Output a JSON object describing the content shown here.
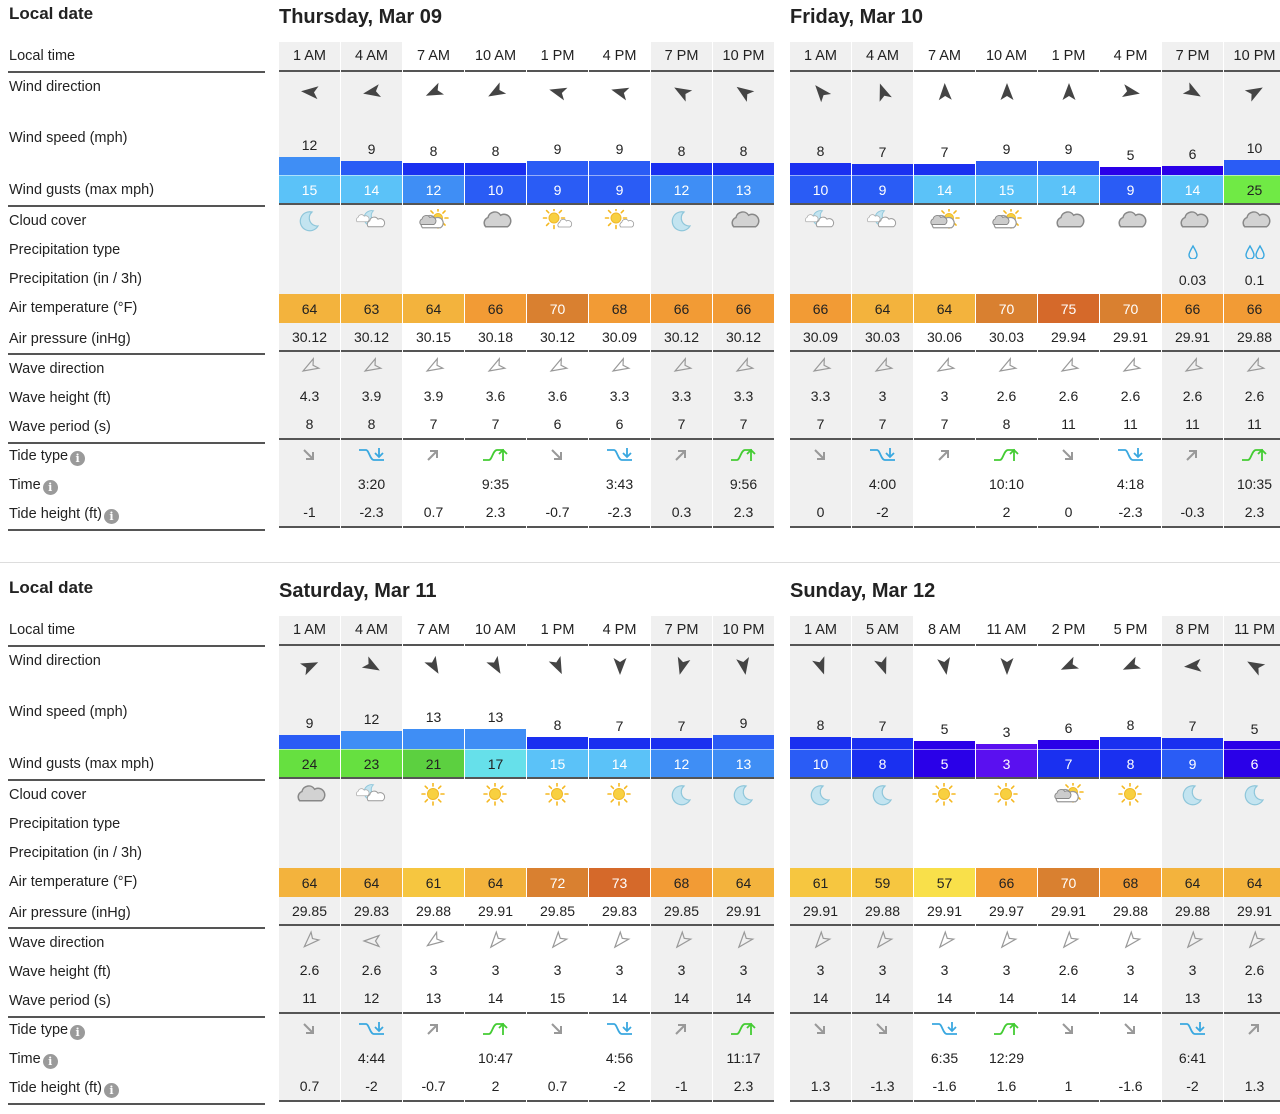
{
  "labels": {
    "local_date": "Local date",
    "local_time": "Local time",
    "wind_direction": "Wind direction",
    "wind_speed": "Wind speed (mph)",
    "wind_gusts": "Wind gusts (max mph)",
    "cloud_cover": "Cloud cover",
    "precip_type": "Precipitation type",
    "precip": "Precipitation (in / 3h)",
    "air_temp": "Air temperature (°F)",
    "air_pressure": "Air pressure (inHg)",
    "wave_direction": "Wave direction",
    "wave_height": "Wave height (ft)",
    "wave_period": "Wave period (s)",
    "tide_type": "Tide type",
    "tide_time": "Time",
    "tide_height": "Tide height (ft)"
  },
  "colors": {
    "wind_scale": [
      [
        0,
        "#5a10f0"
      ],
      [
        4,
        "#2a00e8"
      ],
      [
        7,
        "#1a30f0"
      ],
      [
        9,
        "#2a5cf5"
      ],
      [
        11,
        "#3f8ef5"
      ],
      [
        14,
        "#5bc2f8"
      ],
      [
        16,
        "#66e0ea"
      ],
      [
        19,
        "#5cd040"
      ],
      [
        22,
        "#66e040"
      ],
      [
        25,
        "#70ea45"
      ]
    ],
    "temp_scale": [
      [
        0,
        "#f9e04a"
      ],
      [
        58,
        "#f6c640"
      ],
      [
        62,
        "#f3b33d"
      ],
      [
        65,
        "#f29b35"
      ],
      [
        69,
        "#d98030"
      ],
      [
        73,
        "#d5692a"
      ]
    ],
    "tide_low": "#3aa8e0",
    "tide_high": "#44cc33",
    "night_bg": "#f0f0f0"
  },
  "sections": [
    {
      "days": [
        {
          "title": "Thursday, Mar 09",
          "times": [
            "1 AM",
            "4 AM",
            "7 AM",
            "10 AM",
            "1 PM",
            "4 PM",
            "7 PM",
            "10 PM"
          ],
          "night": [
            true,
            true,
            false,
            false,
            false,
            false,
            true,
            true
          ],
          "wind_dir_deg": [
            275,
            260,
            245,
            240,
            285,
            285,
            300,
            305
          ],
          "wind_speed": [
            12,
            9,
            8,
            8,
            9,
            9,
            8,
            8
          ],
          "wind_gusts": [
            15,
            14,
            12,
            10,
            9,
            9,
            12,
            13
          ],
          "cloud": [
            "moon",
            "moon-cloud",
            "sun-cloud",
            "cloud",
            "sun-small-cloud",
            "sun-small-cloud",
            "moon",
            "cloud"
          ],
          "precip_type": [
            "",
            "",
            "",
            "",
            "",
            "",
            "",
            ""
          ],
          "precip": [
            "",
            "",
            "",
            "",
            "",
            "",
            "",
            ""
          ],
          "temp": [
            64,
            63,
            64,
            66,
            70,
            68,
            66,
            66
          ],
          "pressure": [
            "30.12",
            "30.12",
            "30.15",
            "30.18",
            "30.12",
            "30.09",
            "30.12",
            "30.12"
          ],
          "wave_dir_deg": [
            240,
            240,
            240,
            240,
            240,
            240,
            240,
            240
          ],
          "wave_height": [
            "4.3",
            "3.9",
            "3.9",
            "3.6",
            "3.6",
            "3.3",
            "3.3",
            "3.3"
          ],
          "wave_period": [
            "8",
            "8",
            "7",
            "7",
            "6",
            "6",
            "7",
            "7"
          ],
          "tide_type": [
            "falling",
            "low",
            "rising",
            "high",
            "falling",
            "low",
            "rising",
            "high"
          ],
          "tide_time": [
            "",
            "3:20",
            "",
            "9:35",
            "",
            "3:43",
            "",
            "9:56"
          ],
          "tide_height": [
            "-1",
            "-2.3",
            "0.7",
            "2.3",
            "-0.7",
            "-2.3",
            "0.3",
            "2.3"
          ]
        },
        {
          "title": "Friday, Mar 10",
          "times": [
            "1 AM",
            "4 AM",
            "7 AM",
            "10 AM",
            "1 PM",
            "4 PM",
            "7 PM",
            "10 PM"
          ],
          "night": [
            true,
            true,
            false,
            false,
            false,
            false,
            true,
            true
          ],
          "wind_dir_deg": [
            320,
            340,
            358,
            0,
            0,
            100,
            120,
            60
          ],
          "wind_speed": [
            8,
            7,
            7,
            9,
            9,
            5,
            6,
            10
          ],
          "wind_gusts": [
            10,
            9,
            14,
            15,
            14,
            9,
            14,
            25
          ],
          "cloud": [
            "moon-cloud",
            "moon-cloud",
            "sun-cloud",
            "sun-cloud",
            "cloud",
            "cloud",
            "cloud",
            "cloud"
          ],
          "precip_type": [
            "",
            "",
            "",
            "",
            "",
            "",
            "rain-light",
            "rain"
          ],
          "precip": [
            "",
            "",
            "",
            "",
            "",
            "",
            "0.03",
            "0.1"
          ],
          "temp": [
            66,
            64,
            64,
            70,
            75,
            70,
            66,
            66
          ],
          "pressure": [
            "30.09",
            "30.03",
            "30.06",
            "30.03",
            "29.94",
            "29.91",
            "29.91",
            "29.88"
          ],
          "wave_dir_deg": [
            240,
            240,
            240,
            240,
            240,
            240,
            240,
            240
          ],
          "wave_height": [
            "3.3",
            "3",
            "3",
            "2.6",
            "2.6",
            "2.6",
            "2.6",
            "2.6"
          ],
          "wave_period": [
            "7",
            "7",
            "7",
            "8",
            "11",
            "11",
            "11",
            "11"
          ],
          "tide_type": [
            "falling",
            "low",
            "rising",
            "high",
            "falling",
            "low",
            "rising",
            "high"
          ],
          "tide_time": [
            "",
            "4:00",
            "",
            "10:10",
            "",
            "4:18",
            "",
            "10:35"
          ],
          "tide_height": [
            "0",
            "-2",
            "",
            "2",
            "0",
            "-2.3",
            "-0.3",
            "2.3"
          ]
        }
      ]
    },
    {
      "days": [
        {
          "title": "Saturday, Mar 11",
          "times": [
            "1 AM",
            "4 AM",
            "7 AM",
            "10 AM",
            "1 PM",
            "4 PM",
            "7 PM",
            "10 PM"
          ],
          "night": [
            true,
            true,
            false,
            false,
            false,
            false,
            true,
            true
          ],
          "wind_dir_deg": [
            65,
            120,
            150,
            150,
            155,
            180,
            195,
            170
          ],
          "wind_speed": [
            9,
            12,
            13,
            13,
            8,
            7,
            7,
            9
          ],
          "wind_gusts": [
            24,
            23,
            21,
            17,
            15,
            14,
            12,
            13
          ],
          "cloud": [
            "cloud",
            "moon-cloud",
            "sun",
            "sun",
            "sun",
            "sun",
            "moon",
            "moon"
          ],
          "precip_type": [
            "",
            "",
            "",
            "",
            "",
            "",
            "",
            ""
          ],
          "precip": [
            "",
            "",
            "",
            "",
            "",
            "",
            "",
            ""
          ],
          "temp": [
            64,
            64,
            61,
            64,
            72,
            73,
            68,
            64
          ],
          "pressure": [
            "29.85",
            "29.83",
            "29.88",
            "29.91",
            "29.85",
            "29.83",
            "29.85",
            "29.91"
          ],
          "wave_dir_deg": [
            225,
            270,
            235,
            220,
            220,
            220,
            220,
            220
          ],
          "wave_height": [
            "2.6",
            "2.6",
            "3",
            "3",
            "3",
            "3",
            "3",
            "3"
          ],
          "wave_period": [
            "11",
            "12",
            "13",
            "14",
            "15",
            "14",
            "14",
            "14"
          ],
          "tide_type": [
            "falling",
            "low",
            "rising",
            "high",
            "falling",
            "low",
            "rising",
            "high"
          ],
          "tide_time": [
            "",
            "4:44",
            "",
            "10:47",
            "",
            "4:56",
            "",
            "11:17"
          ],
          "tide_height": [
            "0.7",
            "-2",
            "-0.7",
            "2",
            "0.7",
            "-2",
            "-1",
            "2.3"
          ]
        },
        {
          "title": "Sunday, Mar 12",
          "times": [
            "1 AM",
            "5 AM",
            "8 AM",
            "11 AM",
            "2 PM",
            "5 PM",
            "8 PM",
            "11 PM"
          ],
          "night": [
            true,
            true,
            false,
            false,
            false,
            false,
            true,
            true
          ],
          "wind_dir_deg": [
            160,
            160,
            170,
            180,
            245,
            245,
            265,
            300
          ],
          "wind_speed": [
            8,
            7,
            5,
            3,
            6,
            8,
            7,
            5
          ],
          "wind_gusts": [
            10,
            8,
            5,
            3,
            7,
            8,
            9,
            6
          ],
          "cloud": [
            "moon",
            "moon",
            "sun",
            "sun",
            "sun-cloud",
            "sun",
            "moon",
            "moon"
          ],
          "precip_type": [
            "",
            "",
            "",
            "",
            "",
            "",
            "",
            ""
          ],
          "precip": [
            "",
            "",
            "",
            "",
            "",
            "",
            "",
            ""
          ],
          "temp": [
            61,
            59,
            57,
            66,
            70,
            68,
            64,
            64
          ],
          "pressure": [
            "29.91",
            "29.88",
            "29.91",
            "29.97",
            "29.91",
            "29.88",
            "29.88",
            "29.91"
          ],
          "wave_dir_deg": [
            220,
            220,
            220,
            220,
            220,
            220,
            220,
            220
          ],
          "wave_height": [
            "3",
            "3",
            "3",
            "3",
            "2.6",
            "3",
            "3",
            "2.6"
          ],
          "wave_period": [
            "14",
            "14",
            "14",
            "14",
            "14",
            "14",
            "13",
            "13"
          ],
          "tide_type": [
            "falling",
            "falling",
            "low",
            "high",
            "falling",
            "falling",
            "low",
            "rising"
          ],
          "tide_time": [
            "",
            "",
            "6:35",
            "12:29",
            "",
            "",
            "6:41",
            ""
          ],
          "tide_height": [
            "1.3",
            "-1.3",
            "-1.6",
            "1.6",
            "1",
            "-1.6",
            "-2",
            "1.3"
          ]
        }
      ]
    }
  ]
}
